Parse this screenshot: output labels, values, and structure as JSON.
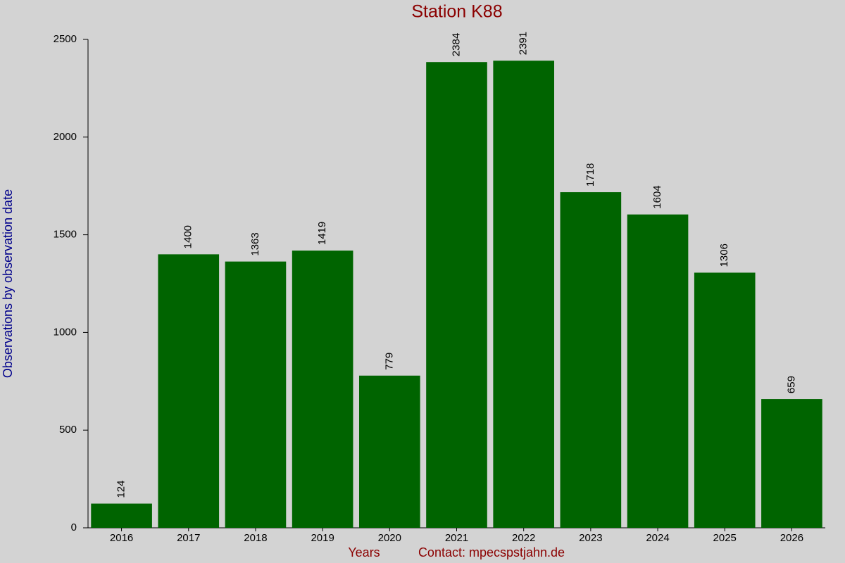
{
  "chart_data": {
    "type": "bar",
    "title": "Station K88",
    "xlabel": "Years",
    "annotation": "Contact: mpecspstjahn.de",
    "ylabel": "Observations by observation date",
    "categories": [
      "2016",
      "2017",
      "2018",
      "2019",
      "2020",
      "2021",
      "2022",
      "2023",
      "2024",
      "2025",
      "2026"
    ],
    "values": [
      124,
      1400,
      1363,
      1419,
      779,
      2384,
      2391,
      1718,
      1604,
      1306,
      659
    ],
    "color": "#006400",
    "ylim": [
      0,
      2500
    ],
    "yticks": [
      0,
      500,
      1000,
      1500,
      2000,
      2500
    ]
  }
}
